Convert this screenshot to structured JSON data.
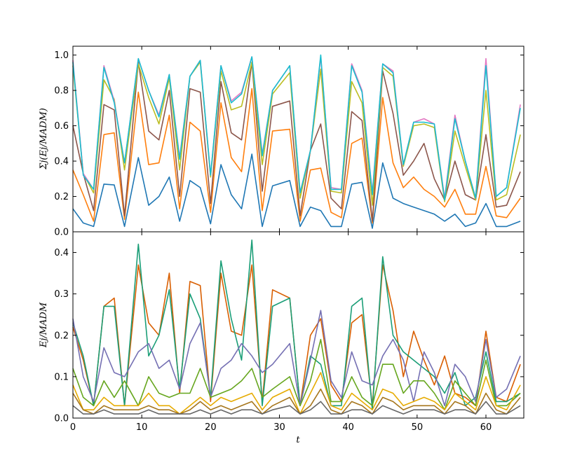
{
  "chart_data": [
    {
      "type": "line",
      "ylabel": "Σj(Ej/MADM)",
      "xlabel": "",
      "xlim": [
        0,
        65.5
      ],
      "ylim": [
        0,
        1.05
      ],
      "xticks": [
        "0",
        "10",
        "20",
        "30",
        "40",
        "50",
        "60"
      ],
      "xtick_values": [
        0,
        10,
        20,
        30,
        40,
        50,
        60
      ],
      "yticks": [
        "0.0",
        "0.2",
        "0.4",
        "0.6",
        "0.8",
        "1.0"
      ],
      "ytick_values": [
        0,
        0.2,
        0.4,
        0.6,
        0.8,
        1.0
      ],
      "x": [
        0,
        1.5,
        3,
        4.5,
        6,
        7.5,
        9.5,
        11,
        12.5,
        14,
        15.5,
        17,
        18.5,
        20,
        21.5,
        23,
        24.5,
        26,
        27.5,
        29,
        31.5,
        33,
        34.5,
        36,
        37.5,
        39,
        40.5,
        42,
        43.5,
        45,
        46.5,
        48,
        49.5,
        51,
        52.5,
        54,
        55.5,
        57,
        58.5,
        60,
        61.5,
        63,
        65
      ],
      "series": [
        {
          "color": "#1f77b4",
          "values": [
            0.13,
            0.05,
            0.03,
            0.27,
            0.265,
            0.03,
            0.42,
            0.15,
            0.2,
            0.31,
            0.06,
            0.29,
            0.25,
            0.045,
            0.38,
            0.21,
            0.13,
            0.44,
            0.03,
            0.26,
            0.29,
            0.03,
            0.14,
            0.12,
            0.03,
            0.03,
            0.27,
            0.28,
            0.02,
            0.39,
            0.19,
            0.16,
            0.14,
            0.12,
            0.1,
            0.06,
            0.1,
            0.03,
            0.05,
            0.16,
            0.03,
            0.03,
            0.06
          ]
        },
        {
          "color": "#ff7f0e",
          "values": [
            0.35,
            0.21,
            0.06,
            0.55,
            0.56,
            0.07,
            0.79,
            0.38,
            0.39,
            0.66,
            0.13,
            0.62,
            0.57,
            0.11,
            0.73,
            0.42,
            0.34,
            0.81,
            0.12,
            0.57,
            0.58,
            0.06,
            0.35,
            0.36,
            0.11,
            0.08,
            0.5,
            0.53,
            0.05,
            0.76,
            0.39,
            0.25,
            0.31,
            0.24,
            0.2,
            0.14,
            0.24,
            0.1,
            0.1,
            0.37,
            0.09,
            0.08,
            0.19
          ]
        },
        {
          "color": "#8c564b",
          "values": [
            0.6,
            0.33,
            0.12,
            0.72,
            0.69,
            0.09,
            0.96,
            0.57,
            0.52,
            0.8,
            0.2,
            0.81,
            0.79,
            0.16,
            0.85,
            0.56,
            0.52,
            0.96,
            0.23,
            0.71,
            0.74,
            0.09,
            0.46,
            0.61,
            0.19,
            0.13,
            0.68,
            0.63,
            0.06,
            0.91,
            0.67,
            0.32,
            0.4,
            0.5,
            0.3,
            0.18,
            0.4,
            0.21,
            0.18,
            0.55,
            0.14,
            0.15,
            0.34
          ]
        },
        {
          "color": "#bcbd22",
          "values": [
            0.94,
            0.33,
            0.22,
            0.86,
            0.75,
            0.35,
            0.95,
            0.76,
            0.61,
            0.87,
            0.35,
            0.88,
            0.96,
            0.31,
            0.91,
            0.69,
            0.71,
            0.96,
            0.38,
            0.78,
            0.9,
            0.19,
            0.46,
            0.92,
            0.23,
            0.22,
            0.85,
            0.73,
            0.15,
            0.93,
            0.88,
            0.37,
            0.6,
            0.61,
            0.59,
            0.17,
            0.57,
            0.37,
            0.18,
            0.8,
            0.18,
            0.21,
            0.55
          ]
        },
        {
          "color": "#e377c2",
          "values": [
            0.97,
            0.33,
            0.24,
            0.94,
            0.74,
            0.39,
            0.98,
            0.8,
            0.66,
            0.89,
            0.42,
            0.88,
            0.97,
            0.32,
            0.94,
            0.74,
            0.79,
            0.99,
            0.44,
            0.8,
            0.94,
            0.22,
            0.46,
            0.99,
            0.25,
            0.24,
            0.95,
            0.8,
            0.22,
            0.95,
            0.91,
            0.38,
            0.62,
            0.64,
            0.61,
            0.19,
            0.66,
            0.4,
            0.19,
            0.98,
            0.2,
            0.25,
            0.72
          ]
        },
        {
          "color": "#17becf",
          "values": [
            0.96,
            0.32,
            0.24,
            0.93,
            0.73,
            0.39,
            0.98,
            0.8,
            0.65,
            0.89,
            0.41,
            0.88,
            0.97,
            0.32,
            0.94,
            0.73,
            0.78,
            0.99,
            0.43,
            0.8,
            0.94,
            0.22,
            0.46,
            1.0,
            0.24,
            0.24,
            0.94,
            0.79,
            0.21,
            0.95,
            0.9,
            0.38,
            0.62,
            0.62,
            0.61,
            0.18,
            0.64,
            0.4,
            0.19,
            0.94,
            0.2,
            0.25,
            0.7
          ]
        }
      ]
    },
    {
      "type": "line",
      "ylabel": "Ej/MADM",
      "xlabel": "t",
      "xlim": [
        0,
        65.5
      ],
      "ylim": [
        0,
        0.45
      ],
      "xticks": [
        "0",
        "10",
        "20",
        "30",
        "40",
        "50",
        "60"
      ],
      "xtick_values": [
        0,
        10,
        20,
        30,
        40,
        50,
        60
      ],
      "yticks": [
        "0.0",
        "0.1",
        "0.2",
        "0.3",
        "0.4"
      ],
      "ytick_values": [
        0,
        0.1,
        0.2,
        0.3,
        0.4
      ],
      "x": [
        0,
        1.5,
        3,
        4.5,
        6,
        7.5,
        9.5,
        11,
        12.5,
        14,
        15.5,
        17,
        18.5,
        20,
        21.5,
        23,
        24.5,
        26,
        27.5,
        29,
        31.5,
        33,
        34.5,
        36,
        37.5,
        39,
        40.5,
        42,
        43.5,
        45,
        46.5,
        48,
        49.5,
        51,
        52.5,
        54,
        55.5,
        57,
        58.5,
        60,
        61.5,
        63,
        65
      ],
      "series": [
        {
          "color": "#d95f02",
          "values": [
            0.22,
            0.14,
            0.03,
            0.27,
            0.29,
            0.03,
            0.37,
            0.23,
            0.2,
            0.35,
            0.06,
            0.33,
            0.32,
            0.04,
            0.35,
            0.21,
            0.2,
            0.37,
            0.04,
            0.31,
            0.29,
            0.03,
            0.2,
            0.24,
            0.08,
            0.04,
            0.23,
            0.25,
            0.03,
            0.37,
            0.26,
            0.1,
            0.21,
            0.14,
            0.08,
            0.15,
            0.06,
            0.05,
            0.03,
            0.21,
            0.05,
            0.04,
            0.13
          ]
        },
        {
          "color": "#1b9e77",
          "values": [
            0.23,
            0.15,
            0.03,
            0.27,
            0.27,
            0.03,
            0.42,
            0.15,
            0.2,
            0.31,
            0.07,
            0.3,
            0.24,
            0.05,
            0.38,
            0.24,
            0.14,
            0.43,
            0.03,
            0.27,
            0.29,
            0.03,
            0.15,
            0.13,
            0.03,
            0.03,
            0.27,
            0.29,
            0.02,
            0.39,
            0.2,
            0.16,
            0.14,
            0.12,
            0.1,
            0.06,
            0.11,
            0.03,
            0.05,
            0.16,
            0.04,
            0.04,
            0.06
          ]
        },
        {
          "color": "#7570b3",
          "values": [
            0.24,
            0.1,
            0.04,
            0.17,
            0.11,
            0.1,
            0.16,
            0.18,
            0.12,
            0.14,
            0.07,
            0.18,
            0.23,
            0.05,
            0.12,
            0.14,
            0.18,
            0.15,
            0.11,
            0.13,
            0.18,
            0.03,
            0.14,
            0.26,
            0.09,
            0.05,
            0.16,
            0.09,
            0.08,
            0.15,
            0.19,
            0.14,
            0.04,
            0.16,
            0.11,
            0.03,
            0.13,
            0.1,
            0.04,
            0.19,
            0.05,
            0.07,
            0.15
          ]
        },
        {
          "color": "#66a61e",
          "values": [
            0.12,
            0.05,
            0.03,
            0.09,
            0.05,
            0.09,
            0.03,
            0.1,
            0.06,
            0.05,
            0.06,
            0.06,
            0.12,
            0.05,
            0.06,
            0.07,
            0.09,
            0.12,
            0.05,
            0.07,
            0.1,
            0.03,
            0.09,
            0.19,
            0.04,
            0.04,
            0.1,
            0.05,
            0.03,
            0.13,
            0.13,
            0.06,
            0.09,
            0.09,
            0.06,
            0.02,
            0.09,
            0.06,
            0.03,
            0.14,
            0.03,
            0.03,
            0.06
          ]
        },
        {
          "color": "#e6ab02",
          "values": [
            0.08,
            0.02,
            0.02,
            0.05,
            0.03,
            0.03,
            0.03,
            0.06,
            0.03,
            0.03,
            0.01,
            0.03,
            0.05,
            0.03,
            0.05,
            0.04,
            0.05,
            0.06,
            0.02,
            0.05,
            0.07,
            0.01,
            0.06,
            0.11,
            0.03,
            0.02,
            0.06,
            0.04,
            0.02,
            0.07,
            0.06,
            0.03,
            0.04,
            0.05,
            0.04,
            0.02,
            0.06,
            0.04,
            0.02,
            0.1,
            0.03,
            0.02,
            0.08
          ]
        },
        {
          "color": "#a6761d",
          "values": [
            0.06,
            0.02,
            0.01,
            0.03,
            0.02,
            0.02,
            0.02,
            0.03,
            0.02,
            0.02,
            0.01,
            0.02,
            0.04,
            0.02,
            0.03,
            0.02,
            0.03,
            0.04,
            0.01,
            0.03,
            0.05,
            0.01,
            0.03,
            0.07,
            0.02,
            0.01,
            0.04,
            0.03,
            0.01,
            0.05,
            0.04,
            0.02,
            0.03,
            0.03,
            0.03,
            0.01,
            0.04,
            0.03,
            0.01,
            0.06,
            0.02,
            0.01,
            0.05
          ]
        },
        {
          "color": "#666666",
          "values": [
            0.03,
            0.01,
            0.01,
            0.02,
            0.01,
            0.01,
            0.01,
            0.02,
            0.01,
            0.01,
            0.01,
            0.01,
            0.02,
            0.01,
            0.02,
            0.01,
            0.02,
            0.02,
            0.01,
            0.02,
            0.03,
            0.01,
            0.02,
            0.04,
            0.01,
            0.01,
            0.02,
            0.02,
            0.01,
            0.03,
            0.02,
            0.01,
            0.02,
            0.02,
            0.02,
            0.01,
            0.02,
            0.02,
            0.01,
            0.04,
            0.01,
            0.01,
            0.03
          ]
        }
      ]
    }
  ]
}
